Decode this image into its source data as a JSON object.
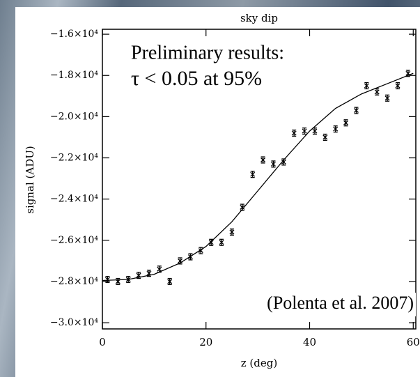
{
  "chart_data": {
    "type": "scatter",
    "title": "sky dip",
    "xlabel": "z (deg)",
    "ylabel": "signal (ADU)",
    "annotations": [
      "Preliminary results:",
      "τ < 0.05 at 95%",
      "(Polenta et al. 2007)"
    ],
    "annotation_colors": [
      "#ff2a12",
      "#000000",
      "#000000"
    ],
    "xlim": [
      0,
      60.5
    ],
    "ylim": [
      -30300,
      -15760
    ],
    "xticks": [
      0,
      20,
      40,
      60
    ],
    "yticks": [
      {
        "value": -16000,
        "label": "−1.6×10⁴"
      },
      {
        "value": -18000,
        "label": "−1.8×10⁴"
      },
      {
        "value": -20000,
        "label": "−2.0×10⁴"
      },
      {
        "value": -22000,
        "label": "−2.2×10⁴"
      },
      {
        "value": -24000,
        "label": "−2.4×10⁴"
      },
      {
        "value": -26000,
        "label": "−2.6×10⁴"
      },
      {
        "value": -28000,
        "label": "−2.8×10⁴"
      },
      {
        "value": -30000,
        "label": "−3.0×10⁴"
      }
    ],
    "series": [
      {
        "kind": "points",
        "color": "#000000",
        "x": [
          1,
          3,
          5,
          7,
          9,
          11,
          13,
          15,
          17,
          19,
          21,
          23,
          25,
          27,
          29,
          31,
          33,
          35,
          37,
          39,
          41,
          43,
          45,
          47,
          49,
          51,
          53,
          55,
          57,
          59
        ],
        "values": [
          -27900,
          -28000,
          -27900,
          -27700,
          -27600,
          -27400,
          -28000,
          -27000,
          -26800,
          -26500,
          -26100,
          -26100,
          -25600,
          -24400,
          -22800,
          -22100,
          -22300,
          -22200,
          -20800,
          -20700,
          -20700,
          -21000,
          -20600,
          -20300,
          -19700,
          -18500,
          -18800,
          -19100,
          -18500,
          -17900
        ],
        "errors": [
          150,
          150,
          150,
          150,
          150,
          150,
          150,
          150,
          150,
          150,
          150,
          150,
          150,
          150,
          150,
          150,
          150,
          150,
          150,
          150,
          150,
          150,
          150,
          150,
          150,
          150,
          150,
          150,
          150,
          150
        ]
      },
      {
        "kind": "line",
        "color": "#000000",
        "x": [
          0,
          5,
          10,
          15,
          20,
          25,
          30,
          35,
          40,
          45,
          50,
          55,
          60
        ],
        "values": [
          -27950,
          -27900,
          -27650,
          -27100,
          -26300,
          -25100,
          -23600,
          -22100,
          -20700,
          -19600,
          -18900,
          -18400,
          -17900
        ]
      }
    ]
  }
}
